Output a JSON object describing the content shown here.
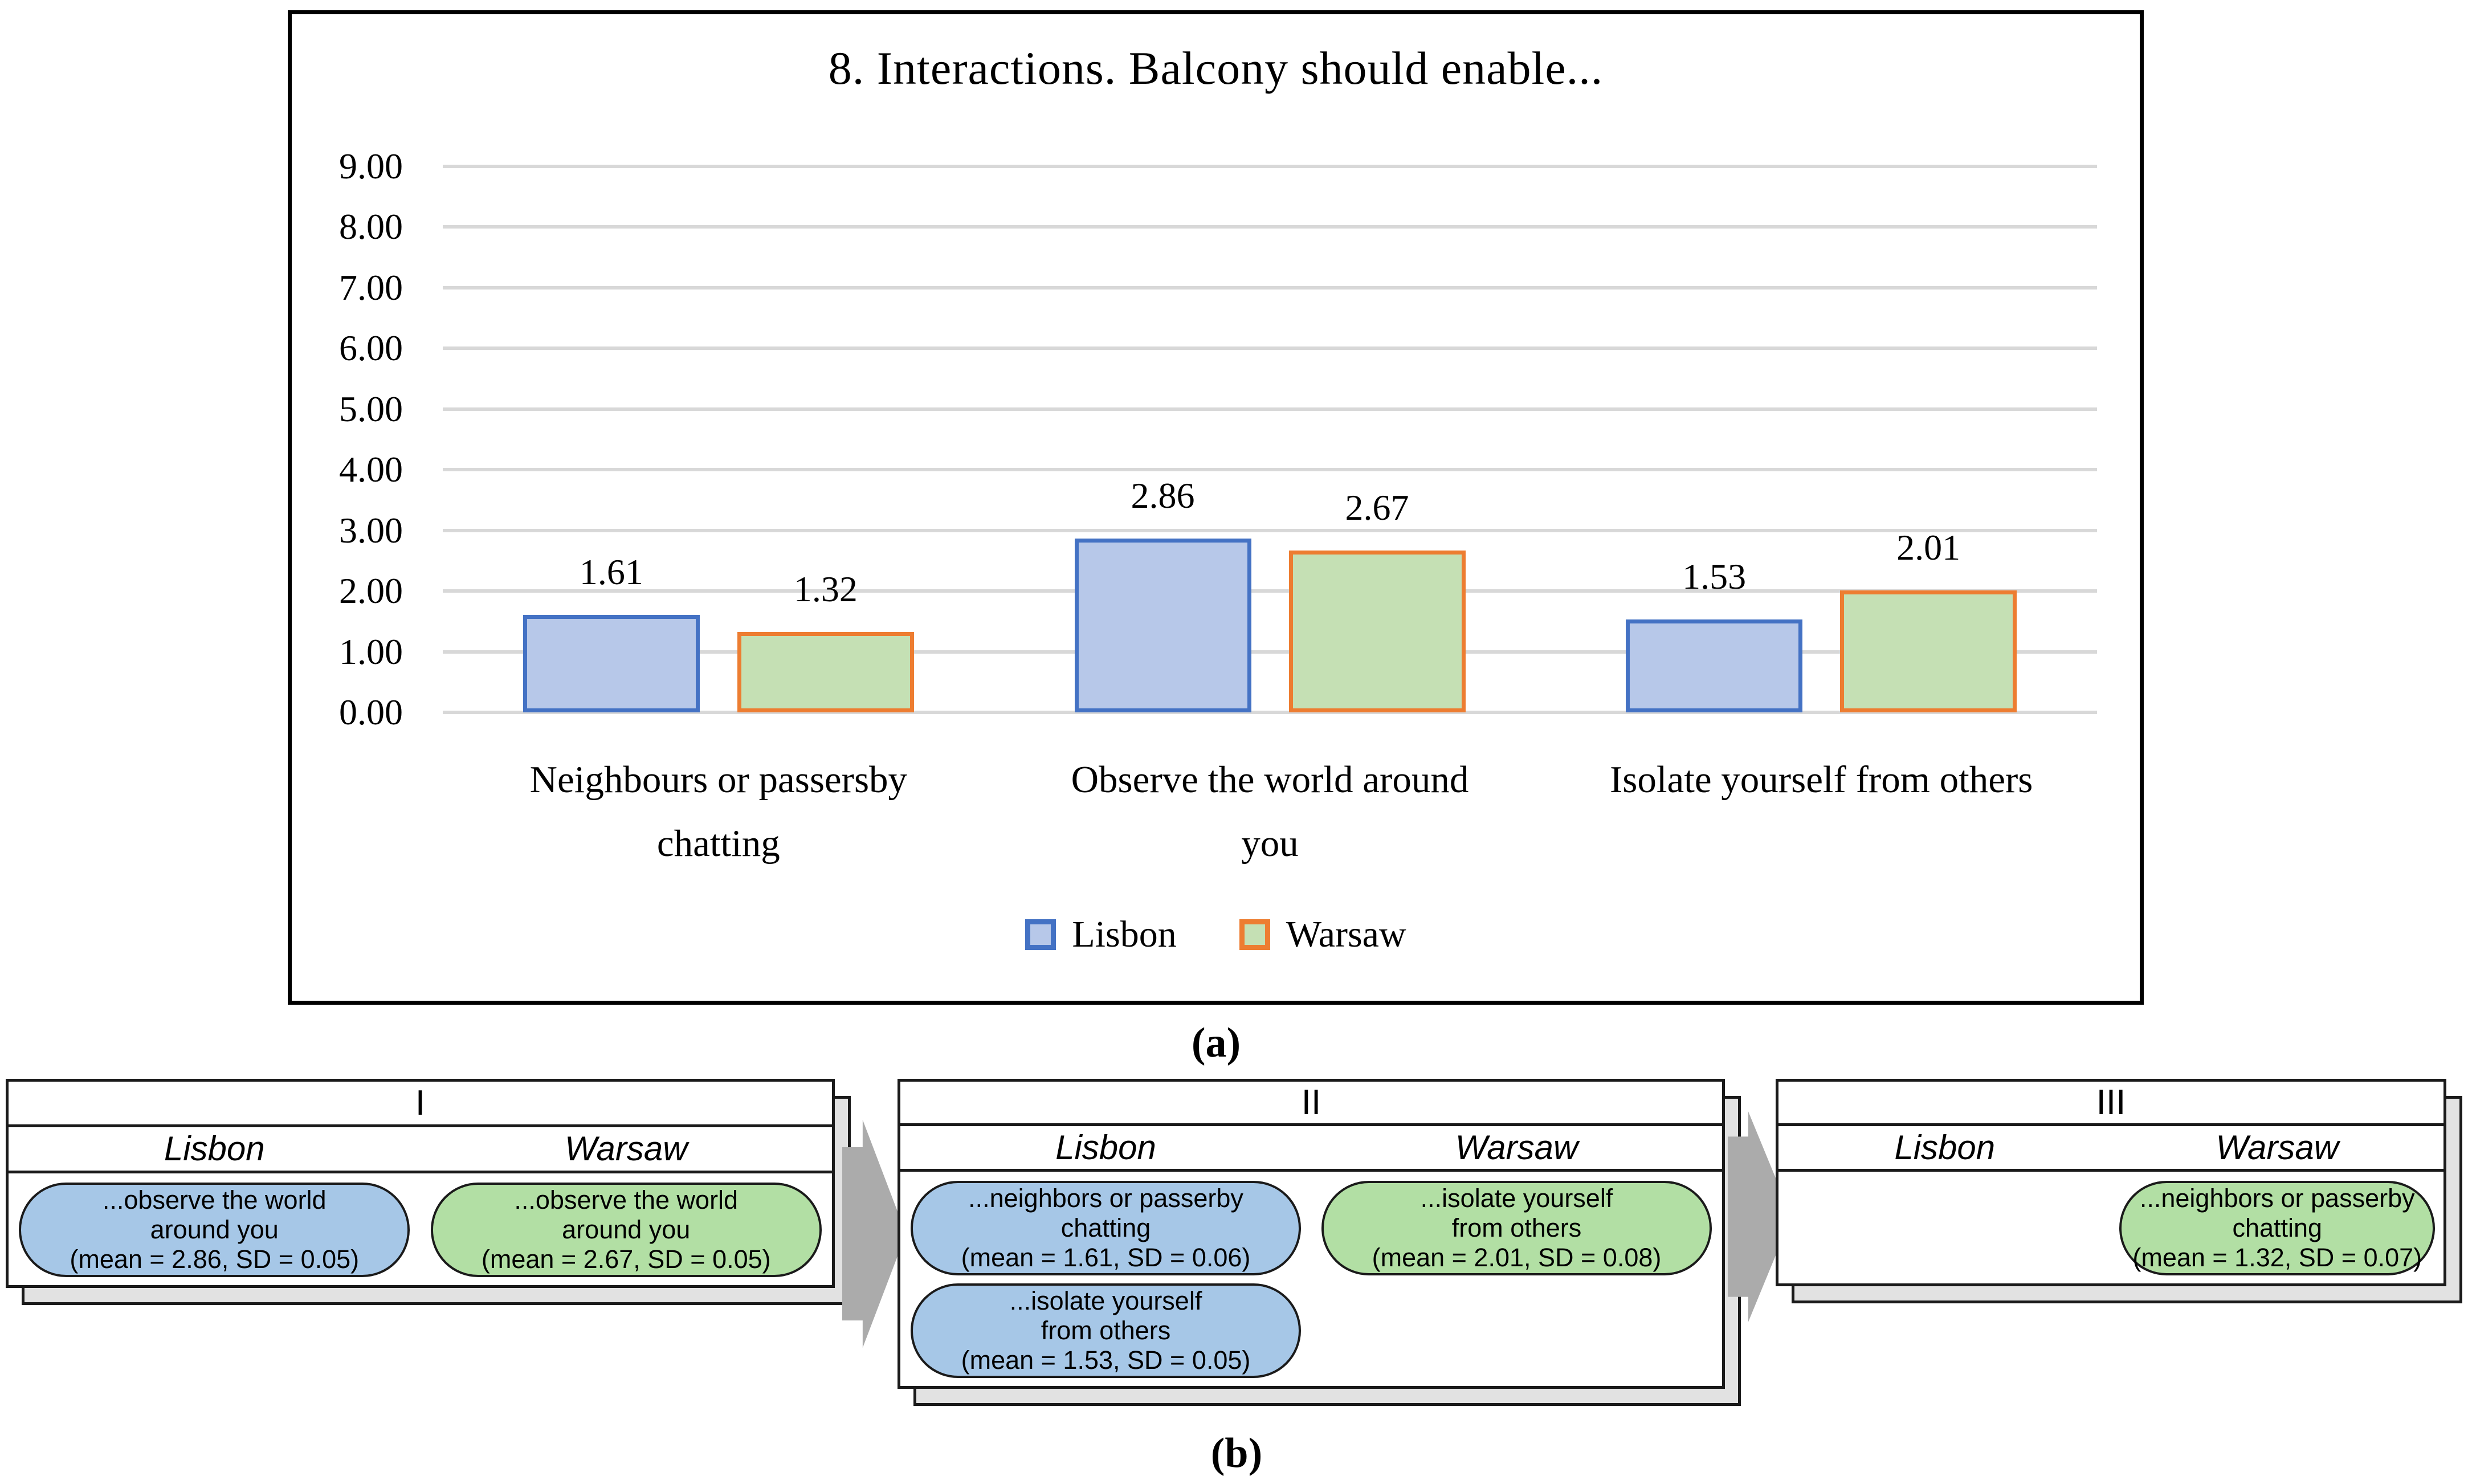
{
  "figure": {
    "panel_a_label": "(a)",
    "panel_b_label": "(b)"
  },
  "chart_data": {
    "type": "bar",
    "title": "8. Interactions. Balcony should enable...",
    "categories": [
      "Neighbours or passersby chatting",
      "Observe the world around you",
      "Isolate yourself from others"
    ],
    "category_lines": [
      [
        "Neighbours or passersby",
        "chatting"
      ],
      [
        "Observe the world around",
        "you"
      ],
      [
        "Isolate yourself from others"
      ]
    ],
    "series": [
      {
        "name": "Lisbon",
        "values": [
          1.61,
          2.86,
          1.53
        ],
        "fill": "#b7c8e9",
        "border": "#4472c4"
      },
      {
        "name": "Warsaw",
        "values": [
          1.32,
          2.67,
          2.01
        ],
        "fill": "#c5e0b4",
        "border": "#ed7d31"
      }
    ],
    "ylim": [
      0,
      9
    ],
    "ytick_step": 1,
    "yticks": [
      "0.00",
      "1.00",
      "2.00",
      "3.00",
      "4.00",
      "5.00",
      "6.00",
      "7.00",
      "8.00",
      "9.00"
    ],
    "value_label_decimals": 2,
    "grid": true,
    "legend_position": "bottom",
    "value_labels": true
  },
  "diagram": {
    "boxes": [
      {
        "numeral": "I",
        "columns": [
          {
            "city": "Lisbon",
            "pills": [
              {
                "color": "blue",
                "lines": [
                  "...observe the world",
                  "around you"
                ],
                "stats": "(mean = 2.86, SD = 0.05)"
              }
            ]
          },
          {
            "city": "Warsaw",
            "pills": [
              {
                "color": "green",
                "lines": [
                  "...observe the world",
                  "around you"
                ],
                "stats": "(mean = 2.67, SD = 0.05)"
              }
            ]
          }
        ]
      },
      {
        "numeral": "II",
        "columns": [
          {
            "city": "Lisbon",
            "pills": [
              {
                "color": "blue",
                "lines": [
                  "...neighbors or passerby",
                  "chatting"
                ],
                "stats": "(mean = 1.61, SD = 0.06)"
              },
              {
                "color": "blue",
                "lines": [
                  "...isolate yourself",
                  "from others"
                ],
                "stats": "(mean = 1.53, SD = 0.05)"
              }
            ]
          },
          {
            "city": "Warsaw",
            "pills": [
              {
                "color": "green",
                "lines": [
                  "...isolate yourself",
                  "from others"
                ],
                "stats": "(mean = 2.01, SD = 0.08)"
              }
            ]
          }
        ]
      },
      {
        "numeral": "III",
        "columns": [
          {
            "city": "Lisbon",
            "pills": []
          },
          {
            "city": "Warsaw",
            "pills": [
              {
                "color": "green",
                "lines": [
                  "...neighbors or passerby",
                  "chatting"
                ],
                "stats": "(mean = 1.32, SD = 0.07)"
              }
            ]
          }
        ]
      }
    ]
  },
  "colors": {
    "gridline": "#d8d8d8",
    "chart_border": "#000000",
    "pill_blue": "#a6c7e7",
    "pill_green": "#b2dfa4",
    "arrow_gray": "#ababab",
    "slab_gray": "#e2e2e2"
  }
}
